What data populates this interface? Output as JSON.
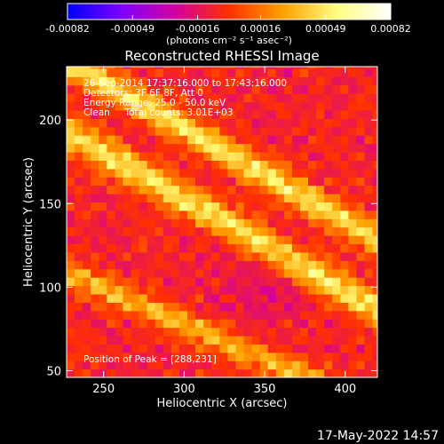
{
  "colorbar": {
    "ticks": [
      "-0.00082",
      "-0.00049",
      "-0.00016",
      "0.00016",
      "0.00049",
      "0.00082"
    ],
    "unit_label": "(photons cm⁻² s⁻¹ asec⁻²)",
    "range": [
      -0.00082,
      0.00082
    ],
    "colors": [
      "#0000ff",
      "#7f00ff",
      "#d400a0",
      "#ff3000",
      "#ffa000",
      "#ffff80",
      "#ffffff"
    ]
  },
  "chart_data": {
    "type": "heatmap",
    "title": "Reconstructed RHESSI Image",
    "xlabel": "Heliocentric X (arcsec)",
    "ylabel": "Heliocentric Y (arcsec)",
    "xlim": [
      227,
      420
    ],
    "ylim": [
      46,
      232
    ],
    "xticks": [
      250,
      300,
      350,
      400
    ],
    "yticks": [
      50,
      100,
      150,
      200
    ],
    "peak": [
      288,
      231
    ],
    "annotations": [
      "26-Sep-2014 17:37:16.000 to 17:43:16.000",
      "Detectors: 3F 6F 8F, Att 0",
      "Energy Range: 25.0 - 50.0 keV",
      "Clean     Total counts: 3.01E+03",
      "Position of Peak = [288,231]"
    ]
  },
  "footer": {
    "timestamp": "17-May-2022 14:57"
  }
}
